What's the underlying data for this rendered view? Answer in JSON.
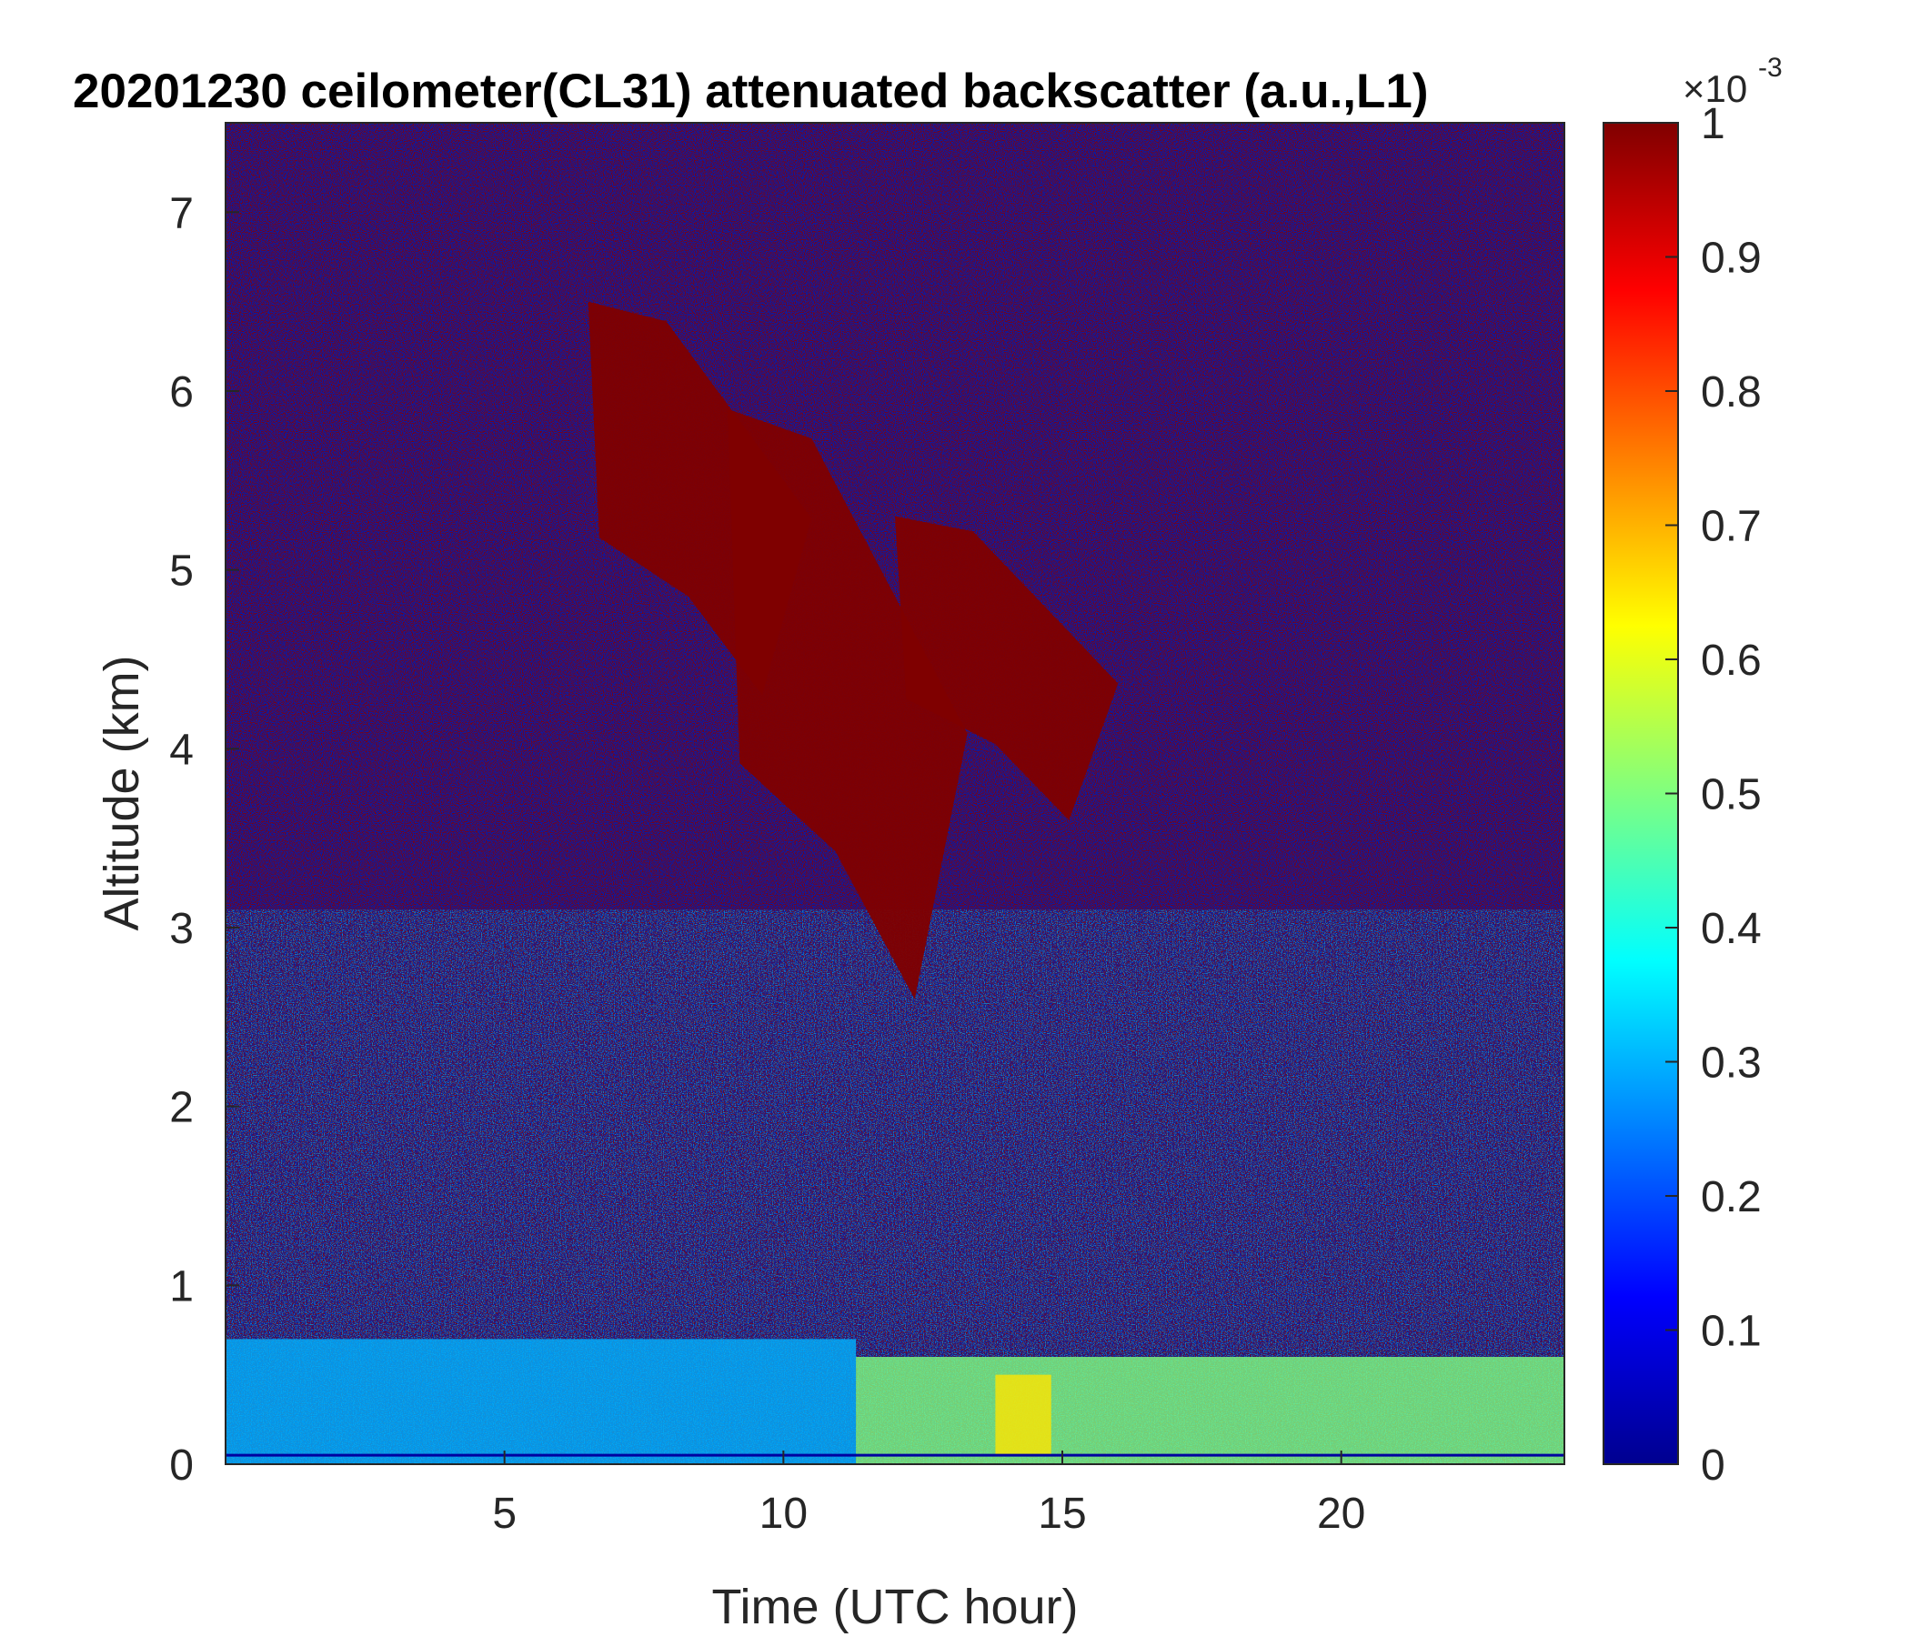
{
  "chart_data": {
    "type": "heatmap",
    "title": "20201230 ceilometer(CL31) attenuated backscatter (a.u.,L1)",
    "xlabel": "Time (UTC hour)",
    "ylabel": "Altitude (km)",
    "xlim": [
      0,
      24
    ],
    "ylim": [
      0,
      7.5
    ],
    "x_ticks": [
      5,
      10,
      15,
      20
    ],
    "y_ticks": [
      0,
      1,
      2,
      3,
      4,
      5,
      6,
      7
    ],
    "colorbar": {
      "colormap": "jet",
      "clim": [
        0,
        1
      ],
      "ticks": [
        0,
        0.1,
        0.2,
        0.3,
        0.4,
        0.5,
        0.6,
        0.7,
        0.8,
        0.9,
        1
      ],
      "scale_label": "×10",
      "scale_exponent": "-3"
    },
    "features": [
      {
        "description_value": 1.0,
        "t_start": 6.5,
        "t_end": 10.5,
        "alt_top": 6.5,
        "alt_bottom": 4.3
      },
      {
        "description_value": 1.0,
        "t_start": 9.0,
        "t_end": 13.3,
        "alt_top": 5.9,
        "alt_bottom": 2.6
      },
      {
        "description_value": 1.0,
        "t_start": 12.0,
        "t_end": 16.0,
        "alt_top": 5.3,
        "alt_bottom": 3.6
      },
      {
        "description_value": 0.3,
        "t_start": 0,
        "t_end": 11.3,
        "alt_top": 0.7,
        "alt_bottom": 0
      },
      {
        "description_value": 0.5,
        "t_start": 11.3,
        "t_end": 24,
        "alt_top": 0.6,
        "alt_bottom": 0
      },
      {
        "description_value": 0.65,
        "t_start": 13.8,
        "t_end": 14.8,
        "alt_top": 0.5,
        "alt_bottom": 0.05
      }
    ]
  }
}
